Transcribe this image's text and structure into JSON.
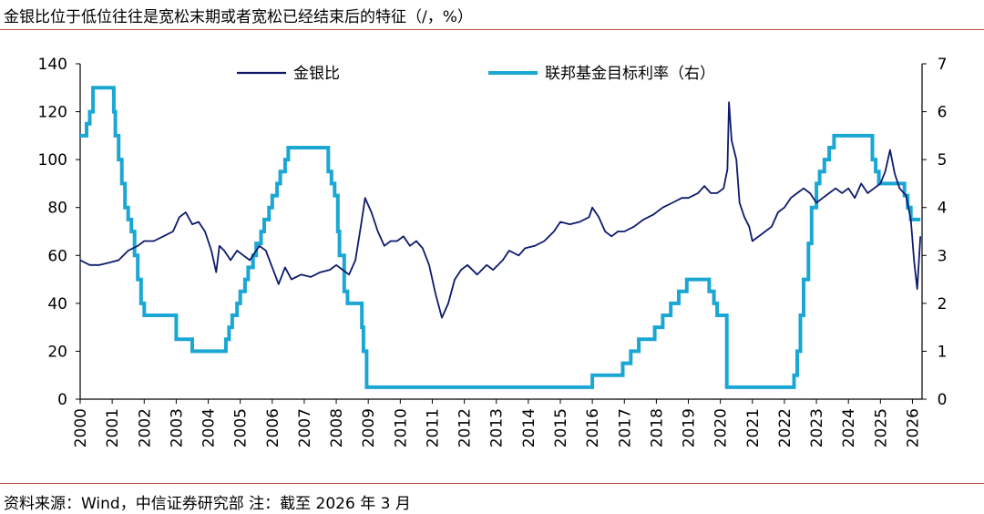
{
  "title": "金银比位于低位往往是宽松末期或者宽松已经结束后的特征（/，%）",
  "source": "资料来源：Wind，中信证券研究部 注：截至 2026 年 3 月",
  "chart_data": {
    "type": "line",
    "title": "金银比位于低位往往是宽松末期或者宽松已经结束后的特征（/，%）",
    "x_ticks": [
      "2000",
      "2001",
      "2002",
      "2003",
      "2004",
      "2005",
      "2006",
      "2007",
      "2008",
      "2009",
      "2010",
      "2011",
      "2012",
      "2013",
      "2014",
      "2015",
      "2016",
      "2017",
      "2018",
      "2019",
      "2020",
      "2021",
      "2022",
      "2023",
      "2024",
      "2025",
      "2026"
    ],
    "xlim": [
      2000,
      2026.3
    ],
    "y_left": {
      "ticks": [
        "0",
        "20",
        "40",
        "60",
        "80",
        "100",
        "120",
        "140"
      ],
      "ylim": [
        0,
        140
      ]
    },
    "y_right": {
      "ticks": [
        "0",
        "1",
        "2",
        "3",
        "4",
        "5",
        "6",
        "7"
      ],
      "ylim": [
        0,
        7
      ]
    },
    "legend": [
      "金银比",
      "联邦基金目标利率（右）"
    ],
    "colors": {
      "ratio": "#0e1a6b",
      "rate": "#1aa7d4",
      "axis": "#000000"
    },
    "series": [
      {
        "name": "金银比",
        "axis": "left",
        "points": [
          [
            2000.0,
            58
          ],
          [
            2000.3,
            56
          ],
          [
            2000.6,
            56
          ],
          [
            2000.9,
            57
          ],
          [
            2001.2,
            58
          ],
          [
            2001.5,
            62
          ],
          [
            2001.8,
            64
          ],
          [
            2002.0,
            66
          ],
          [
            2002.3,
            66
          ],
          [
            2002.6,
            68
          ],
          [
            2002.9,
            70
          ],
          [
            2003.1,
            76
          ],
          [
            2003.3,
            78
          ],
          [
            2003.5,
            73
          ],
          [
            2003.7,
            74
          ],
          [
            2003.9,
            70
          ],
          [
            2004.1,
            62
          ],
          [
            2004.25,
            53
          ],
          [
            2004.35,
            64
          ],
          [
            2004.5,
            62
          ],
          [
            2004.7,
            58
          ],
          [
            2004.9,
            62
          ],
          [
            2005.1,
            60
          ],
          [
            2005.3,
            58
          ],
          [
            2005.6,
            64
          ],
          [
            2005.8,
            62
          ],
          [
            2006.0,
            55
          ],
          [
            2006.2,
            48
          ],
          [
            2006.4,
            55
          ],
          [
            2006.6,
            50
          ],
          [
            2006.9,
            52
          ],
          [
            2007.2,
            51
          ],
          [
            2007.5,
            53
          ],
          [
            2007.8,
            54
          ],
          [
            2008.0,
            56
          ],
          [
            2008.2,
            54
          ],
          [
            2008.4,
            52
          ],
          [
            2008.6,
            58
          ],
          [
            2008.8,
            75
          ],
          [
            2008.9,
            84
          ],
          [
            2009.1,
            78
          ],
          [
            2009.3,
            70
          ],
          [
            2009.5,
            64
          ],
          [
            2009.7,
            66
          ],
          [
            2009.9,
            66
          ],
          [
            2010.1,
            68
          ],
          [
            2010.3,
            64
          ],
          [
            2010.5,
            66
          ],
          [
            2010.7,
            63
          ],
          [
            2010.9,
            56
          ],
          [
            2011.1,
            44
          ],
          [
            2011.3,
            34
          ],
          [
            2011.5,
            40
          ],
          [
            2011.7,
            50
          ],
          [
            2011.9,
            54
          ],
          [
            2012.1,
            56
          ],
          [
            2012.4,
            52
          ],
          [
            2012.7,
            56
          ],
          [
            2012.9,
            54
          ],
          [
            2013.2,
            58
          ],
          [
            2013.4,
            62
          ],
          [
            2013.7,
            60
          ],
          [
            2013.9,
            63
          ],
          [
            2014.2,
            64
          ],
          [
            2014.5,
            66
          ],
          [
            2014.8,
            70
          ],
          [
            2015.0,
            74
          ],
          [
            2015.3,
            73
          ],
          [
            2015.6,
            74
          ],
          [
            2015.9,
            76
          ],
          [
            2016.0,
            80
          ],
          [
            2016.2,
            76
          ],
          [
            2016.4,
            70
          ],
          [
            2016.6,
            68
          ],
          [
            2016.8,
            70
          ],
          [
            2017.0,
            70
          ],
          [
            2017.3,
            72
          ],
          [
            2017.6,
            75
          ],
          [
            2017.9,
            77
          ],
          [
            2018.2,
            80
          ],
          [
            2018.5,
            82
          ],
          [
            2018.8,
            84
          ],
          [
            2019.0,
            84
          ],
          [
            2019.3,
            86
          ],
          [
            2019.5,
            89
          ],
          [
            2019.7,
            86
          ],
          [
            2019.9,
            86
          ],
          [
            2020.1,
            88
          ],
          [
            2020.22,
            96
          ],
          [
            2020.27,
            124
          ],
          [
            2020.35,
            108
          ],
          [
            2020.5,
            100
          ],
          [
            2020.6,
            82
          ],
          [
            2020.75,
            76
          ],
          [
            2020.9,
            72
          ],
          [
            2021.0,
            66
          ],
          [
            2021.2,
            68
          ],
          [
            2021.4,
            70
          ],
          [
            2021.6,
            72
          ],
          [
            2021.8,
            78
          ],
          [
            2022.0,
            80
          ],
          [
            2022.2,
            84
          ],
          [
            2022.4,
            86
          ],
          [
            2022.6,
            88
          ],
          [
            2022.8,
            86
          ],
          [
            2023.0,
            82
          ],
          [
            2023.2,
            84
          ],
          [
            2023.4,
            86
          ],
          [
            2023.6,
            88
          ],
          [
            2023.8,
            86
          ],
          [
            2024.0,
            88
          ],
          [
            2024.2,
            84
          ],
          [
            2024.4,
            90
          ],
          [
            2024.6,
            86
          ],
          [
            2024.8,
            88
          ],
          [
            2025.0,
            90
          ],
          [
            2025.15,
            95
          ],
          [
            2025.3,
            104
          ],
          [
            2025.45,
            94
          ],
          [
            2025.6,
            88
          ],
          [
            2025.8,
            85
          ],
          [
            2025.95,
            75
          ],
          [
            2026.05,
            58
          ],
          [
            2026.15,
            46
          ],
          [
            2026.25,
            68
          ]
        ]
      },
      {
        "name": "联邦基金目标利率（右）",
        "axis": "right",
        "points": [
          [
            2000.0,
            5.5
          ],
          [
            2000.2,
            5.75
          ],
          [
            2000.3,
            6.0
          ],
          [
            2000.4,
            6.5
          ],
          [
            2001.0,
            6.5
          ],
          [
            2001.05,
            6.0
          ],
          [
            2001.1,
            5.5
          ],
          [
            2001.2,
            5.0
          ],
          [
            2001.3,
            4.5
          ],
          [
            2001.4,
            4.0
          ],
          [
            2001.5,
            3.75
          ],
          [
            2001.6,
            3.5
          ],
          [
            2001.7,
            3.0
          ],
          [
            2001.8,
            2.5
          ],
          [
            2001.9,
            2.0
          ],
          [
            2002.0,
            1.75
          ],
          [
            2002.9,
            1.75
          ],
          [
            2003.0,
            1.25
          ],
          [
            2003.5,
            1.0
          ],
          [
            2004.5,
            1.0
          ],
          [
            2004.55,
            1.25
          ],
          [
            2004.65,
            1.5
          ],
          [
            2004.75,
            1.75
          ],
          [
            2004.9,
            2.0
          ],
          [
            2005.0,
            2.25
          ],
          [
            2005.15,
            2.5
          ],
          [
            2005.25,
            2.75
          ],
          [
            2005.4,
            3.0
          ],
          [
            2005.5,
            3.25
          ],
          [
            2005.65,
            3.5
          ],
          [
            2005.75,
            3.75
          ],
          [
            2005.9,
            4.0
          ],
          [
            2006.0,
            4.25
          ],
          [
            2006.15,
            4.5
          ],
          [
            2006.25,
            4.75
          ],
          [
            2006.4,
            5.0
          ],
          [
            2006.5,
            5.25
          ],
          [
            2007.7,
            5.25
          ],
          [
            2007.75,
            4.75
          ],
          [
            2007.85,
            4.5
          ],
          [
            2007.95,
            4.25
          ],
          [
            2008.05,
            3.5
          ],
          [
            2008.1,
            3.0
          ],
          [
            2008.25,
            2.25
          ],
          [
            2008.35,
            2.0
          ],
          [
            2008.8,
            1.5
          ],
          [
            2008.85,
            1.0
          ],
          [
            2008.95,
            0.25
          ],
          [
            2015.95,
            0.25
          ],
          [
            2016.0,
            0.5
          ],
          [
            2016.95,
            0.75
          ],
          [
            2017.2,
            1.0
          ],
          [
            2017.45,
            1.25
          ],
          [
            2017.95,
            1.5
          ],
          [
            2018.2,
            1.75
          ],
          [
            2018.45,
            2.0
          ],
          [
            2018.7,
            2.25
          ],
          [
            2018.95,
            2.5
          ],
          [
            2019.55,
            2.5
          ],
          [
            2019.65,
            2.25
          ],
          [
            2019.8,
            2.0
          ],
          [
            2019.9,
            1.75
          ],
          [
            2020.15,
            1.75
          ],
          [
            2020.2,
            0.25
          ],
          [
            2022.2,
            0.25
          ],
          [
            2022.3,
            0.5
          ],
          [
            2022.4,
            1.0
          ],
          [
            2022.5,
            1.75
          ],
          [
            2022.6,
            2.5
          ],
          [
            2022.75,
            3.25
          ],
          [
            2022.85,
            4.0
          ],
          [
            2023.0,
            4.5
          ],
          [
            2023.1,
            4.75
          ],
          [
            2023.25,
            5.0
          ],
          [
            2023.4,
            5.25
          ],
          [
            2023.55,
            5.5
          ],
          [
            2024.7,
            5.5
          ],
          [
            2024.75,
            5.0
          ],
          [
            2024.85,
            4.75
          ],
          [
            2024.95,
            4.5
          ],
          [
            2025.7,
            4.5
          ],
          [
            2025.75,
            4.25
          ],
          [
            2025.85,
            4.0
          ],
          [
            2025.95,
            3.75
          ],
          [
            2026.25,
            3.75
          ]
        ]
      }
    ]
  }
}
